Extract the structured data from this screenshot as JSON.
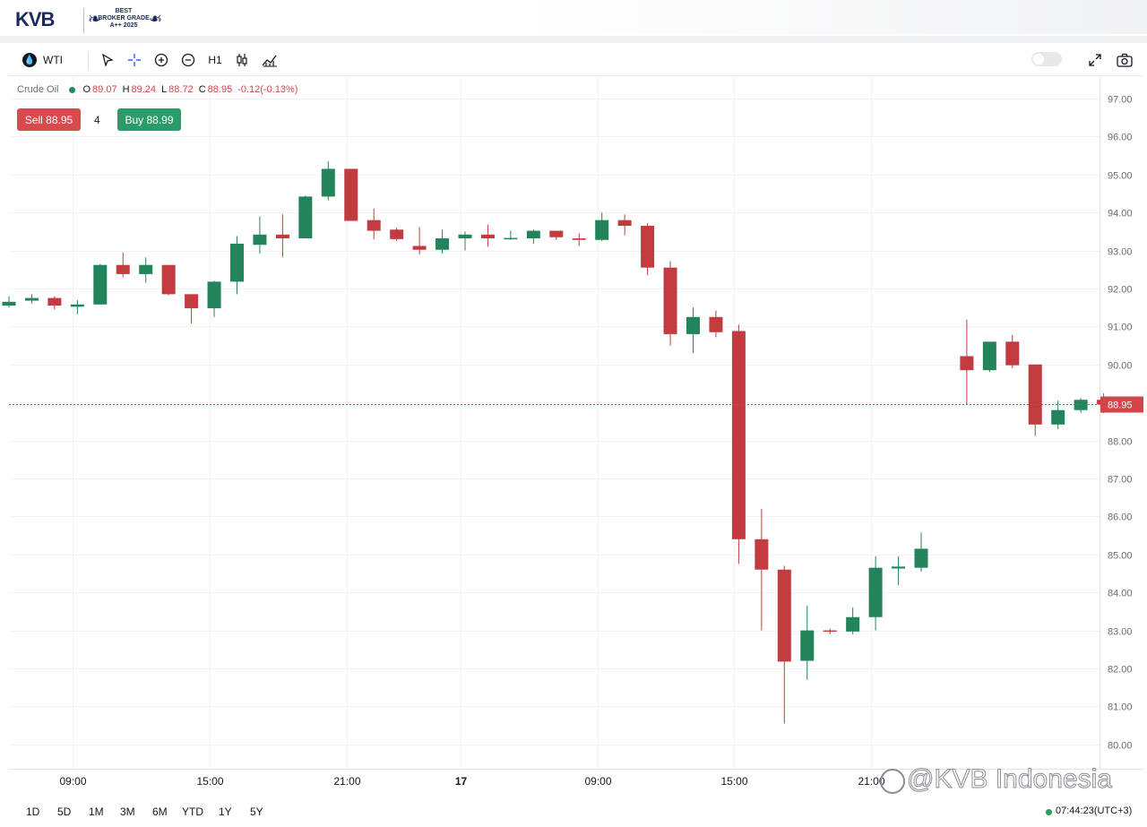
{
  "brand": {
    "logo": "KVB",
    "award_lines": [
      "BEST",
      "BROKER GRADE",
      "A++ 2025"
    ]
  },
  "toolbar": {
    "symbol": "WTI",
    "timeframe": "H1",
    "icons": [
      "droplet-icon",
      "cursor-icon",
      "crosshair-icon",
      "zoom-in-icon",
      "zoom-out-icon",
      "candles-icon",
      "indicators-icon",
      "fullscreen-icon",
      "camera-icon"
    ]
  },
  "legend": {
    "name": "Crude Oil",
    "o_label": "O",
    "o_value": "89.07",
    "h_label": "H",
    "h_value": "89.24",
    "l_label": "L",
    "l_value": "88.72",
    "c_label": "C",
    "c_value": "88.95",
    "change": "-0.12(-0.13%)"
  },
  "trade": {
    "sell_label": "Sell 88.95",
    "spread": "4",
    "buy_label": "Buy 88.99"
  },
  "time_ranges": [
    "1D",
    "5D",
    "1M",
    "3M",
    "6M",
    "YTD",
    "1Y",
    "5Y"
  ],
  "clock": "07:44:23(UTC+3)",
  "watermark": "@KVB Indonesia",
  "colors": {
    "up": "#22845a",
    "down": "#c23b40",
    "price_line": "#d2454a",
    "grid": "#f0f3fa"
  },
  "chart_data": {
    "type": "candlestick",
    "y_ticks": [
      "97.00",
      "96.00",
      "95.00",
      "94.00",
      "93.00",
      "92.00",
      "91.00",
      "90.00",
      "89.00",
      "88.00",
      "87.00",
      "86.00",
      "85.00",
      "84.00",
      "83.00",
      "82.00",
      "81.00",
      "80.00"
    ],
    "ylim": [
      79.6,
      97.4
    ],
    "x_ticks": [
      {
        "index": 2.8,
        "label": "09:00"
      },
      {
        "index": 8.8,
        "label": "15:00"
      },
      {
        "index": 14.8,
        "label": "21:00"
      },
      {
        "index": 19.8,
        "label": "17"
      },
      {
        "index": 25.8,
        "label": "09:00"
      },
      {
        "index": 31.8,
        "label": "15:00"
      },
      {
        "index": 37.8,
        "label": "21:00"
      }
    ],
    "last_price_label": "88.95",
    "last_price": 88.95,
    "candles": [
      {
        "o": 91.55,
        "h": 91.8,
        "l": 91.5,
        "c": 91.65
      },
      {
        "o": 91.68,
        "h": 91.85,
        "l": 91.6,
        "c": 91.75
      },
      {
        "o": 91.75,
        "h": 91.8,
        "l": 91.45,
        "c": 91.55
      },
      {
        "o": 91.52,
        "h": 91.7,
        "l": 91.32,
        "c": 91.58
      },
      {
        "o": 91.58,
        "h": 92.65,
        "l": 91.58,
        "c": 92.62
      },
      {
        "o": 92.62,
        "h": 92.95,
        "l": 92.3,
        "c": 92.38
      },
      {
        "o": 92.38,
        "h": 92.82,
        "l": 92.15,
        "c": 92.62
      },
      {
        "o": 92.62,
        "h": 92.62,
        "l": 91.82,
        "c": 91.85
      },
      {
        "o": 91.85,
        "h": 91.85,
        "l": 91.08,
        "c": 91.48
      },
      {
        "o": 91.48,
        "h": 92.2,
        "l": 91.25,
        "c": 92.18
      },
      {
        "o": 92.18,
        "h": 93.38,
        "l": 91.85,
        "c": 93.18
      },
      {
        "o": 93.15,
        "h": 93.9,
        "l": 92.92,
        "c": 93.42
      },
      {
        "o": 93.42,
        "h": 93.95,
        "l": 92.82,
        "c": 93.32
      },
      {
        "o": 93.32,
        "h": 94.45,
        "l": 93.32,
        "c": 94.42
      },
      {
        "o": 94.42,
        "h": 95.35,
        "l": 94.32,
        "c": 95.15
      },
      {
        "o": 95.15,
        "h": 95.15,
        "l": 93.78,
        "c": 93.78
      },
      {
        "o": 93.8,
        "h": 94.1,
        "l": 93.3,
        "c": 93.52
      },
      {
        "o": 93.55,
        "h": 93.6,
        "l": 93.25,
        "c": 93.3
      },
      {
        "o": 93.12,
        "h": 93.62,
        "l": 92.9,
        "c": 93.02
      },
      {
        "o": 93.02,
        "h": 93.55,
        "l": 92.92,
        "c": 93.32
      },
      {
        "o": 93.32,
        "h": 93.5,
        "l": 93.0,
        "c": 93.42
      },
      {
        "o": 93.42,
        "h": 93.68,
        "l": 93.1,
        "c": 93.32
      },
      {
        "o": 93.32,
        "h": 93.52,
        "l": 93.28,
        "c": 93.33
      },
      {
        "o": 93.32,
        "h": 93.55,
        "l": 93.18,
        "c": 93.52
      },
      {
        "o": 93.52,
        "h": 93.52,
        "l": 93.28,
        "c": 93.35
      },
      {
        "o": 93.32,
        "h": 93.45,
        "l": 93.12,
        "c": 93.28
      },
      {
        "o": 93.28,
        "h": 94.0,
        "l": 93.25,
        "c": 93.8
      },
      {
        "o": 93.8,
        "h": 93.95,
        "l": 93.4,
        "c": 93.65
      },
      {
        "o": 93.65,
        "h": 93.72,
        "l": 92.35,
        "c": 92.55
      },
      {
        "o": 92.55,
        "h": 92.72,
        "l": 90.5,
        "c": 90.8
      },
      {
        "o": 90.8,
        "h": 91.5,
        "l": 90.3,
        "c": 91.25
      },
      {
        "o": 91.25,
        "h": 91.42,
        "l": 90.72,
        "c": 90.85
      },
      {
        "o": 90.88,
        "h": 91.05,
        "l": 84.75,
        "c": 85.4
      },
      {
        "o": 85.4,
        "h": 86.2,
        "l": 83.0,
        "c": 84.6
      },
      {
        "o": 84.6,
        "h": 84.7,
        "l": 80.55,
        "c": 82.18
      },
      {
        "o": 82.2,
        "h": 83.65,
        "l": 81.7,
        "c": 83.0
      },
      {
        "o": 83.0,
        "h": 83.05,
        "l": 82.9,
        "c": 82.97
      },
      {
        "o": 82.97,
        "h": 83.6,
        "l": 82.9,
        "c": 83.35
      },
      {
        "o": 83.35,
        "h": 84.95,
        "l": 83.0,
        "c": 84.65
      },
      {
        "o": 84.63,
        "h": 84.95,
        "l": 84.2,
        "c": 84.68
      },
      {
        "o": 84.65,
        "h": 85.58,
        "l": 84.55,
        "c": 85.15
      },
      null,
      {
        "o": 90.22,
        "h": 91.18,
        "l": 88.95,
        "c": 89.85
      },
      {
        "o": 89.85,
        "h": 90.6,
        "l": 89.8,
        "c": 90.6
      },
      {
        "o": 90.6,
        "h": 90.78,
        "l": 89.9,
        "c": 89.98
      },
      {
        "o": 90.0,
        "h": 90.0,
        "l": 88.12,
        "c": 88.42
      },
      {
        "o": 88.42,
        "h": 89.05,
        "l": 88.3,
        "c": 88.8
      },
      {
        "o": 88.8,
        "h": 89.12,
        "l": 88.72,
        "c": 89.07
      },
      {
        "o": 89.07,
        "h": 89.24,
        "l": 88.72,
        "c": 88.95
      }
    ]
  }
}
